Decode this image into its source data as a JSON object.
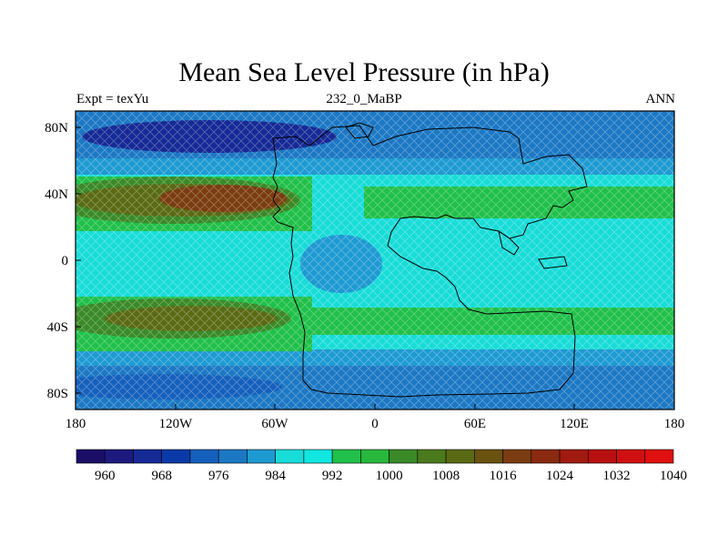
{
  "title": "Mean Sea Level Pressure (in hPa)",
  "subtitle_left": "Expt = texYu",
  "subtitle_center": "232_0_MaBP",
  "subtitle_right": "ANN",
  "map": {
    "lon_ticks": [
      "180",
      "120W",
      "60W",
      "0",
      "60E",
      "120E",
      "180"
    ],
    "lat_ticks": [
      "80N",
      "40N",
      "0",
      "40S",
      "80S"
    ]
  },
  "colorbar": {
    "colors": [
      "#1b0e66",
      "#1c1a7e",
      "#152a96",
      "#0a3aa8",
      "#1560bc",
      "#1c78c4",
      "#1e9ad2",
      "#18dcd8",
      "#12e6e0",
      "#20c04a",
      "#28b83c",
      "#3a8a28",
      "#4a7a1c",
      "#5a6a14",
      "#6a5210",
      "#7a3c10",
      "#8a2a10",
      "#a01a10",
      "#b81010",
      "#d01010",
      "#e01010"
    ],
    "labels": [
      "960",
      "968",
      "976",
      "984",
      "992",
      "1000",
      "1008",
      "1016",
      "1024",
      "1032",
      "1040"
    ]
  }
}
